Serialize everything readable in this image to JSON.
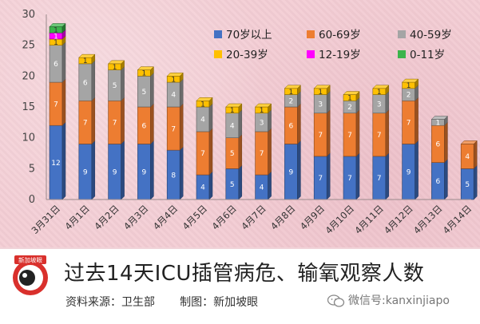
{
  "chart_data": {
    "type": "bar",
    "stacked": true,
    "ylim": [
      0,
      30
    ],
    "yticks": [
      0,
      5,
      10,
      15,
      20,
      25,
      30
    ],
    "grid": false,
    "legend_position": "top-right",
    "categories": [
      "3月31日",
      "4月1日",
      "4月2日",
      "4月3日",
      "4月4日",
      "4月5日",
      "4月6日",
      "4月7日",
      "4月8日",
      "4月9日",
      "4月10日",
      "4月11日",
      "4月12日",
      "4月13日",
      "4月14日"
    ],
    "series": [
      {
        "name": "70岁以上",
        "color": "#4472c4",
        "values": [
          12,
          9,
          9,
          9,
          8,
          4,
          5,
          4,
          9,
          7,
          7,
          7,
          9,
          6,
          5
        ]
      },
      {
        "name": "60-69岁",
        "color": "#ed7d31",
        "values": [
          7,
          7,
          7,
          6,
          7,
          7,
          5,
          7,
          6,
          7,
          7,
          7,
          7,
          6,
          4
        ]
      },
      {
        "name": "40-59岁",
        "color": "#a5a5a5",
        "values": [
          6,
          6,
          5,
          5,
          4,
          4,
          4,
          3,
          2,
          3,
          2,
          3,
          2,
          1,
          0
        ]
      },
      {
        "name": "20-39岁",
        "color": "#ffc000",
        "values": [
          1,
          1,
          1,
          1,
          1,
          1,
          1,
          1,
          1,
          1,
          1,
          1,
          1,
          0,
          0
        ]
      },
      {
        "name": "12-19岁",
        "color": "#ff00ff",
        "values": [
          1,
          0,
          0,
          0,
          0,
          0,
          0,
          0,
          0,
          0,
          0,
          0,
          0,
          0,
          0
        ]
      },
      {
        "name": "0-11岁",
        "color": "#3cb44b",
        "values": [
          1,
          0,
          0,
          0,
          0,
          0,
          0,
          0,
          0,
          0,
          0,
          0,
          0,
          0,
          0
        ]
      }
    ]
  },
  "footer": {
    "title": "过去14天ICU插管病危、输氧观察人数",
    "source_label": "资料来源：",
    "source_value": "卫生部",
    "made_label": "制图：",
    "made_value": "新加坡眼",
    "wechat_label": "微信号:",
    "wechat_id": "kanxinjiapo",
    "logo_text": "新加坡眼"
  }
}
